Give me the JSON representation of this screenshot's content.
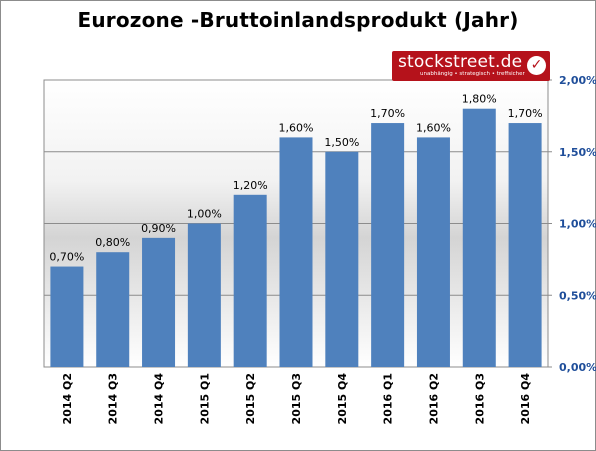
{
  "chart_data": {
    "type": "bar",
    "title": "Eurozone -Bruttoinlandsprodukt (Jahr)",
    "categories": [
      "2014 Q2",
      "2014 Q3",
      "2014 Q4",
      "2015 Q1",
      "2015 Q2",
      "2015 Q3",
      "2015 Q4",
      "2016 Q1",
      "2016 Q2",
      "2016 Q3",
      "2016 Q4"
    ],
    "values": [
      0.7,
      0.8,
      0.9,
      1.0,
      1.2,
      1.6,
      1.5,
      1.7,
      1.6,
      1.8,
      1.7
    ],
    "data_labels": [
      "0,70%",
      "0,80%",
      "0,90%",
      "1,00%",
      "1,20%",
      "1,60%",
      "1,50%",
      "1,70%",
      "1,60%",
      "1,80%",
      "1,70%"
    ],
    "yticks": [
      0,
      0.5,
      1.0,
      1.5,
      2.0
    ],
    "ytick_labels": [
      "0,00%",
      "0,50%",
      "1,00%",
      "1,50%",
      "2,00%"
    ],
    "ylim": [
      0,
      2.0
    ],
    "y_axis_side": "right",
    "grid": true,
    "colors": {
      "bar": "#4f81bd",
      "axis_labels": "#1f4e9a"
    }
  },
  "logo": {
    "name": "stockstreet.de",
    "tagline": "unabhängig • strategisch • treffsicher",
    "color": "#b5121b"
  }
}
